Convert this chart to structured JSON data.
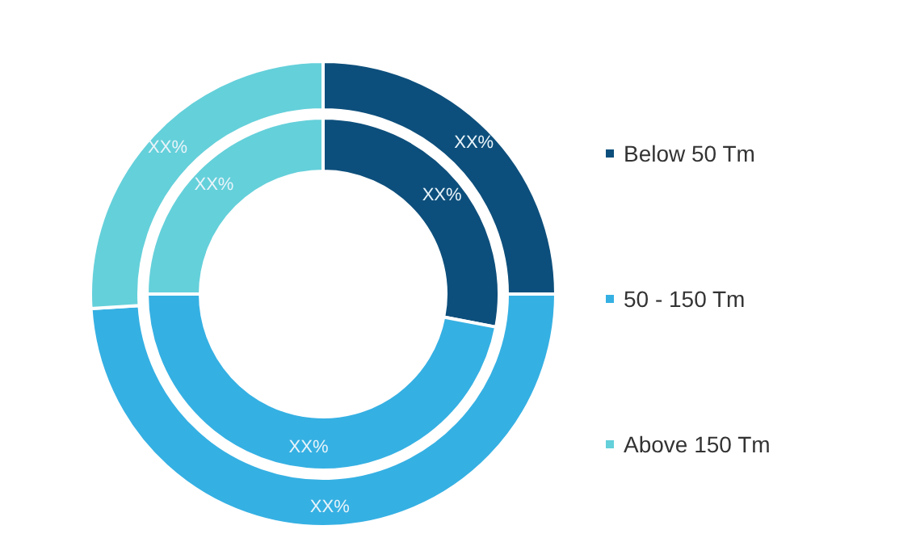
{
  "chart_data": {
    "type": "donut",
    "categories": [
      "Below 50 Tm",
      "50 - 150 Tm",
      "Above 150 Tm"
    ],
    "colors": [
      "#0d4f7c",
      "#35b0e3",
      "#64d0da"
    ],
    "legend": "right",
    "series": [
      {
        "values": [
          28,
          47,
          25
        ],
        "value_labels": [
          "XX%",
          "XX%",
          "XX%"
        ]
      },
      {
        "values": [
          25,
          49,
          26
        ],
        "value_labels": [
          "XX%",
          "XX%",
          "XX%"
        ]
      }
    ]
  }
}
